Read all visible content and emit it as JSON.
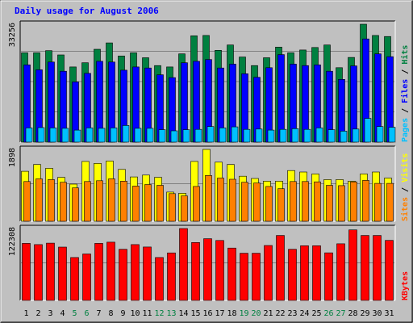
{
  "chart_data": {
    "type": "bar",
    "title": "Daily usage for August 2006",
    "categories": [
      "1",
      "2",
      "3",
      "4",
      "5",
      "6",
      "7",
      "8",
      "9",
      "10",
      "11",
      "12",
      "13",
      "14",
      "15",
      "16",
      "17",
      "18",
      "19",
      "20",
      "21",
      "22",
      "23",
      "24",
      "25",
      "26",
      "27",
      "28",
      "29",
      "30",
      "31"
    ],
    "weekend_days": [
      "5",
      "6",
      "12",
      "13",
      "19",
      "20",
      "26",
      "27"
    ],
    "panels": [
      {
        "id": "hits",
        "ymax_label": "33256",
        "ylim": [
          0,
          33256
        ],
        "series": [
          {
            "name": "Hits",
            "color": "#008040",
            "values": [
              25200,
              25200,
              25800,
              24600,
              21200,
              22400,
              26200,
              28000,
              24300,
              25200,
              23800,
              21600,
              21200,
              24900,
              30000,
              30100,
              25900,
              27400,
              24000,
              21600,
              23800,
              26800,
              25200,
              26000,
              26700,
              27400,
              21000,
              23900,
              33256,
              30100,
              29800
            ]
          },
          {
            "name": "Files",
            "color": "#0000ff",
            "values": [
              21800,
              20400,
              22600,
              20000,
              17000,
              19400,
              22800,
              22600,
              20300,
              21200,
              20900,
              19000,
              18200,
              22400,
              22800,
              23300,
              20900,
              22000,
              19300,
              18300,
              21000,
              24700,
              22000,
              21600,
              21800,
              20000,
              17700,
              21500,
              29100,
              24900,
              24100
            ]
          },
          {
            "name": "Pages",
            "color": "#00c0ff",
            "values": [
              4000,
              4100,
              4000,
              3900,
              3400,
              4000,
              3900,
              4000,
              4700,
              3900,
              3900,
              3500,
              3200,
              3500,
              3600,
              4400,
              4000,
              4300,
              3600,
              3700,
              3400,
              3600,
              3800,
              3600,
              4000,
              3500,
              3100,
              3700,
              6700,
              4400,
              4200
            ]
          }
        ]
      },
      {
        "id": "visits",
        "ymax_label": "1898",
        "ylim": [
          0,
          1898
        ],
        "series": [
          {
            "name": "Visits",
            "color": "#ffff00",
            "values": [
              1320,
              1500,
              1400,
              1160,
              980,
              1580,
              1530,
              1590,
              1370,
              1170,
              1220,
              1160,
              770,
              740,
              1580,
              1898,
              1560,
              1500,
              1190,
              1130,
              1060,
              1060,
              1340,
              1300,
              1250,
              1100,
              1100,
              1060,
              1250,
              1300,
              1140
            ]
          },
          {
            "name": "Sites",
            "color": "#ff8000",
            "values": [
              1050,
              1120,
              1100,
              1030,
              880,
              1050,
              1070,
              1120,
              1060,
              930,
              970,
              950,
              730,
              670,
              920,
              1210,
              1140,
              1110,
              1030,
              1010,
              920,
              860,
              1050,
              1050,
              1040,
              950,
              940,
              1040,
              1080,
              1000,
              1000
            ]
          }
        ]
      },
      {
        "id": "kbytes",
        "ymax_label": "122308",
        "ylim": [
          0,
          122308
        ],
        "series": [
          {
            "name": "KBytes",
            "color": "#ff0000",
            "values": [
              97000,
              95000,
              97400,
              90700,
              73000,
              79000,
              97000,
              99100,
              87000,
              95000,
              90900,
              73000,
              80800,
              122308,
              98500,
              105000,
              102000,
              89000,
              80300,
              80300,
              93400,
              110500,
              87000,
              93000,
              93000,
              81000,
              96400,
              120000,
              110500,
              110500,
              102100
            ]
          }
        ]
      }
    ],
    "legends": [
      [
        {
          "text": "Pages",
          "color": "#00c0ff"
        },
        {
          "text": "Files",
          "color": "#0000ff"
        },
        {
          "text": "Hits",
          "color": "#008040"
        }
      ],
      [
        {
          "text": "Sites",
          "color": "#ff8000"
        },
        {
          "text": "Visits",
          "color": "#ffff00"
        }
      ],
      [
        {
          "text": "KBytes",
          "color": "#ff0000"
        }
      ]
    ],
    "legend_separator": "/",
    "colors": {
      "title": "#0000ff",
      "day_label": "#000000",
      "weekend_label": "#008040",
      "panel_bg": "#c0c0c0",
      "grid": "#808080"
    }
  }
}
